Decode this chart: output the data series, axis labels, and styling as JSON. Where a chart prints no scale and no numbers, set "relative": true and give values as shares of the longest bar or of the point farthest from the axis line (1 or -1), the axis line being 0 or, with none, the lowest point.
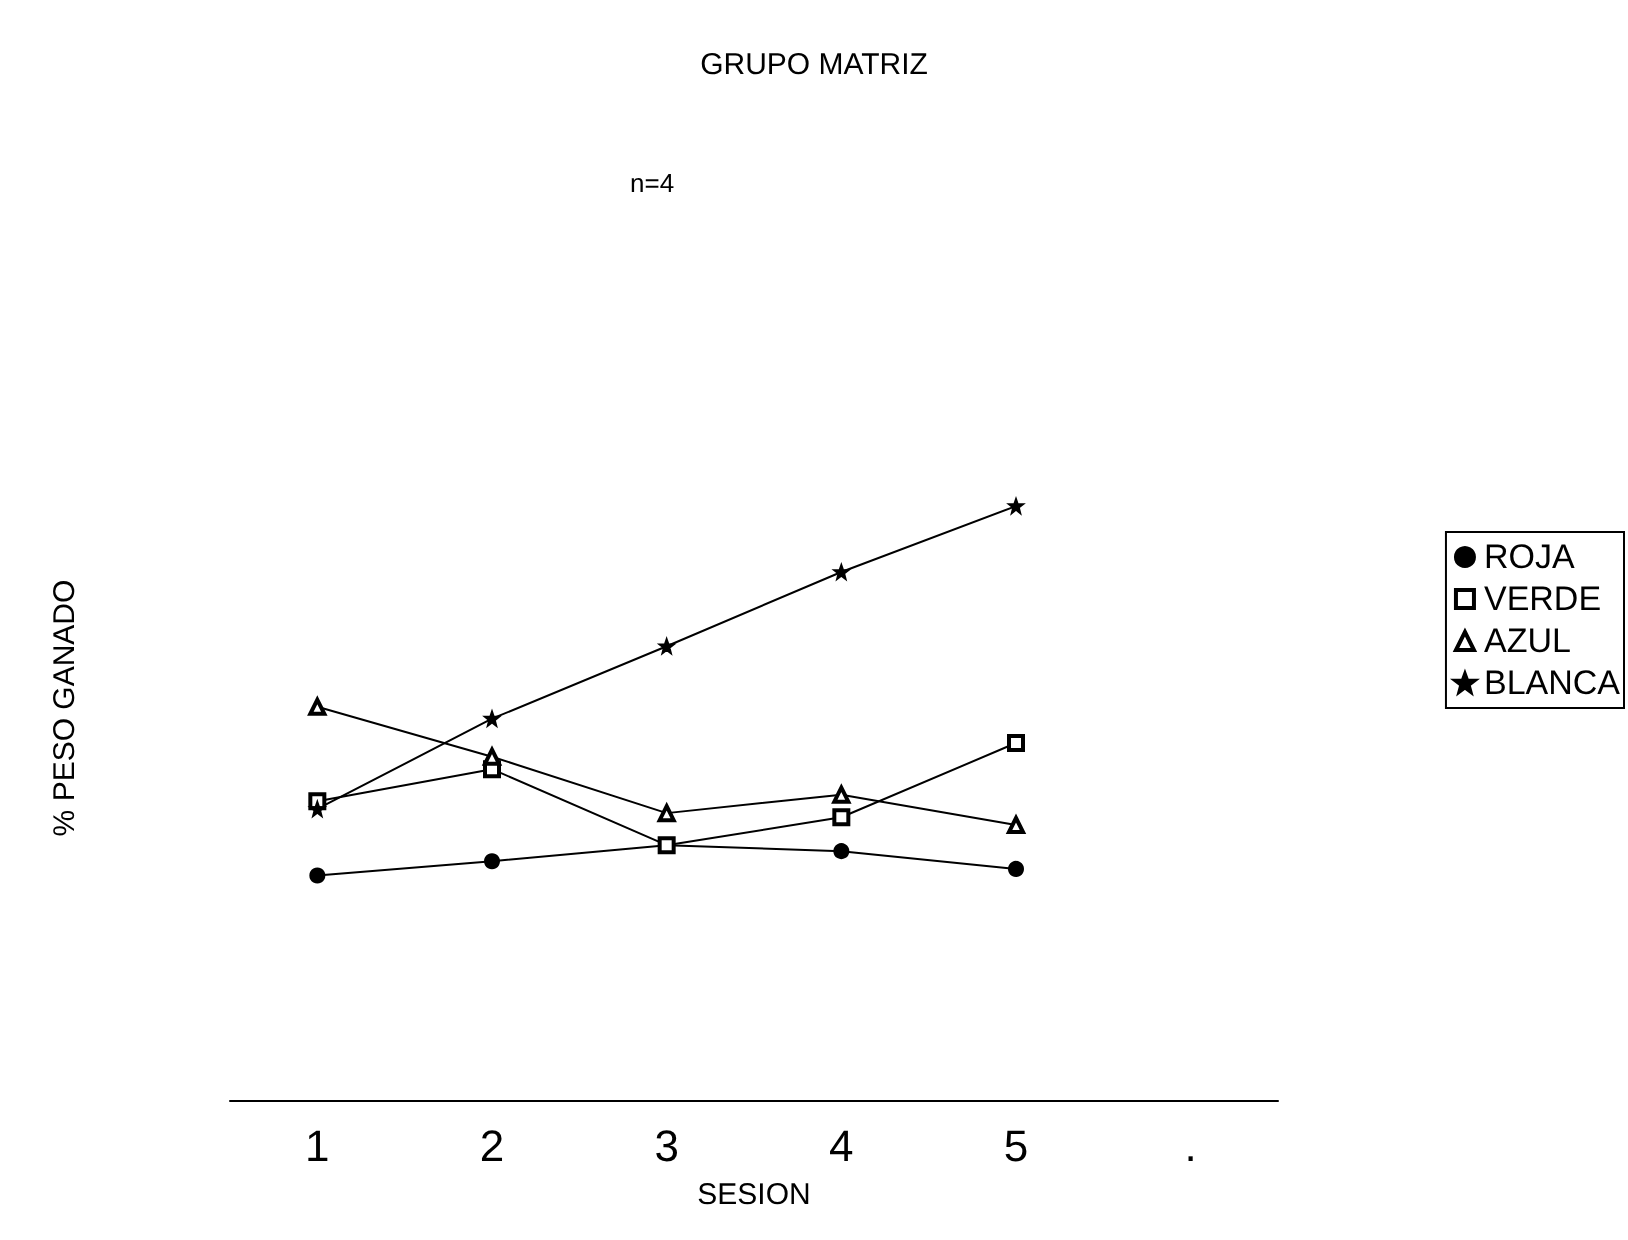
{
  "chart_data": {
    "type": "line",
    "title": "GRUPO MATRIZ",
    "subtitle": "n=4",
    "xlabel": "SESION",
    "ylabel": "% PESO GANADO",
    "relative": true,
    "legend": "right",
    "grid": false,
    "categories": [
      "1",
      "2",
      "3",
      "4",
      "5",
      "."
    ],
    "series": [
      {
        "name": "ROJA",
        "color": "#000000",
        "marker": "circle",
        "values": [
          0.378,
          0.402,
          0.429,
          0.419,
          0.389,
          null
        ]
      },
      {
        "name": "VERDE",
        "color": "#000000",
        "marker": "square",
        "values": [
          0.503,
          0.557,
          0.429,
          0.476,
          0.601,
          null
        ]
      },
      {
        "name": "AZUL",
        "color": "#000000",
        "marker": "triangle",
        "values": [
          0.662,
          0.578,
          0.483,
          0.514,
          0.463,
          null
        ]
      },
      {
        "name": "BLANCA",
        "color": "#000000",
        "marker": "star",
        "values": [
          0.49,
          0.642,
          0.764,
          0.889,
          1,
          null
        ]
      }
    ]
  }
}
